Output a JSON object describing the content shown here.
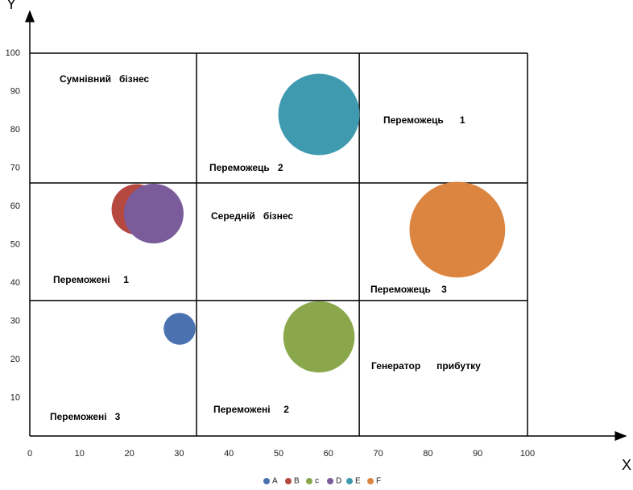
{
  "chart_data": {
    "type": "bubble",
    "x_label": "X",
    "y_label": "Y",
    "xlim": [
      0,
      100
    ],
    "ylim": [
      0,
      100
    ],
    "xticks": [
      0,
      10,
      20,
      30,
      40,
      50,
      60,
      70,
      80,
      90,
      100
    ],
    "yticks": [
      10,
      20,
      30,
      40,
      50,
      60,
      70,
      80,
      90,
      100
    ],
    "dividers_x": [
      33.5,
      66.2
    ],
    "dividers_y": [
      35.4,
      66.1
    ],
    "series": [
      {
        "name": "A",
        "color": "#4a72b0",
        "x": 30.1,
        "y": 28.0,
        "size": 2
      },
      {
        "name": "B",
        "color": "#b5483f",
        "x": 21.5,
        "y": 59.2,
        "size": 5
      },
      {
        "name": "c",
        "color": "#8aa84b",
        "x": 58.1,
        "y": 25.9,
        "size": 10
      },
      {
        "name": "D",
        "color": "#7a5c9a",
        "x": 24.9,
        "y": 58.1,
        "size": 7
      },
      {
        "name": "E",
        "color": "#3f9ab0",
        "x": 58.1,
        "y": 84.0,
        "size": 13
      },
      {
        "name": "F",
        "color": "#dc8540",
        "x": 85.9,
        "y": 53.9,
        "size": 18
      }
    ],
    "annotations": [
      "Сумнівний   бізнес",
      "Переможець   2",
      "Переможець      1",
      "Середній   бізнес",
      "Переможені     1",
      "Переможець    3",
      "Генератор      прибутку",
      "Переможені     2",
      "Переможені   3"
    ]
  }
}
